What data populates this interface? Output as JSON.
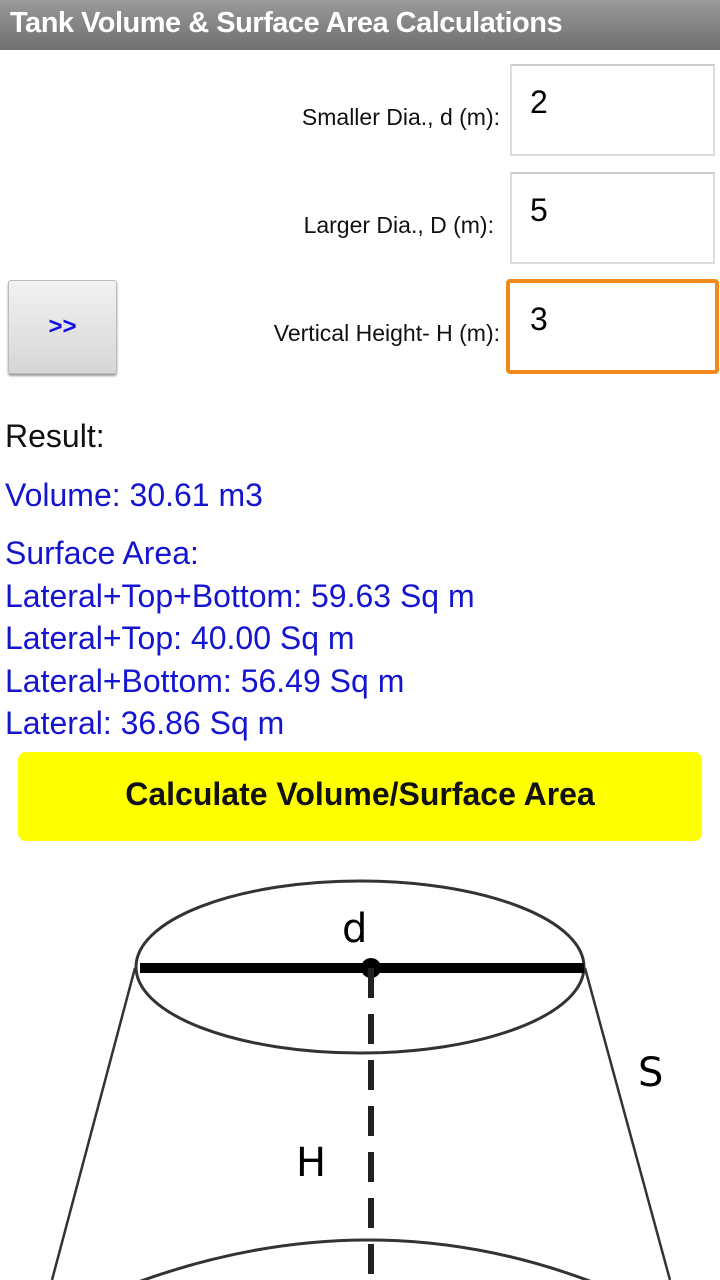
{
  "title": "Tank Volume & Surface Area Calculations",
  "inputs": [
    {
      "label": "Smaller Dia., d (m):",
      "value": "2"
    },
    {
      "label": "Larger Dia., D (m):",
      "value": "5"
    },
    {
      "label": "Vertical Height- H (m):",
      "value": "3"
    }
  ],
  "nav_button": ">>",
  "result": {
    "heading": "Result:",
    "volume": "Volume: 30.61 m3",
    "surface_heading": "Surface Area:",
    "lines": [
      "Lateral+Top+Bottom: 59.63 Sq m",
      "Lateral+Top: 40.00 Sq m",
      "Lateral+Bottom: 56.49 Sq m",
      "Lateral: 36.86 Sq m"
    ]
  },
  "calculate_button": "Calculate Volume/Surface Area",
  "diagram": {
    "d": "d",
    "H": "H",
    "S": "S"
  },
  "colors": {
    "result": "#1515d0",
    "calculate": "#ffff00",
    "focus": "#f08a1c"
  }
}
